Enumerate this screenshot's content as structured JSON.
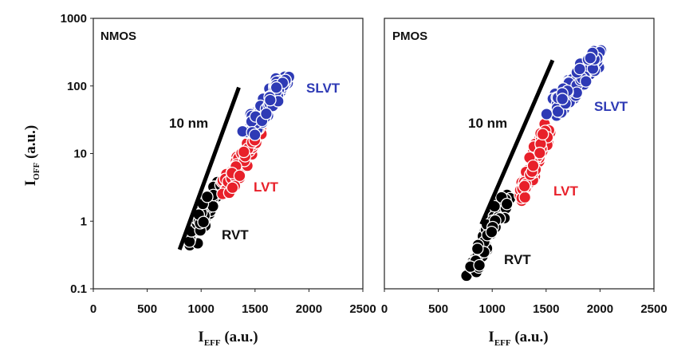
{
  "chart_data": [
    {
      "type": "scatter",
      "title": "NMOS",
      "xlabel": "I_EFF (a.u.)",
      "ylabel": "I_OFF (a.u.)",
      "xlim": [
        0,
        2500
      ],
      "ylim": [
        0.1,
        1000
      ],
      "y_scale": "log",
      "x_ticks": [
        "0",
        "500",
        "1000",
        "1500",
        "2000",
        "2500"
      ],
      "y_ticks": [
        "0.1",
        "1",
        "10",
        "100",
        "1000"
      ],
      "reference_line": {
        "label": "10 nm",
        "x": [
          800,
          1350
        ],
        "y": [
          0.38,
          95
        ]
      },
      "series": [
        {
          "name": "RVT",
          "color": "#000000",
          "x_range": [
            870,
            1200
          ],
          "y_range": [
            0.38,
            4.5
          ]
        },
        {
          "name": "LVT",
          "color": "#e8202a",
          "x_range": [
            1180,
            1600
          ],
          "y_range": [
            2.2,
            35
          ]
        },
        {
          "name": "SLVT",
          "color": "#2e3ab5",
          "x_range": [
            1380,
            1830
          ],
          "y_range": [
            17,
            150
          ]
        }
      ]
    },
    {
      "type": "scatter",
      "title": "PMOS",
      "xlabel": "I_EFF (a.u.)",
      "ylabel": "",
      "xlim": [
        0,
        2500
      ],
      "ylim": [
        0.1,
        1000
      ],
      "y_scale": "log",
      "x_ticks": [
        "0",
        "500",
        "1000",
        "1500",
        "2000",
        "2500"
      ],
      "y_ticks": [],
      "reference_line": {
        "label": "10 nm",
        "x": [
          900,
          1560
        ],
        "y": [
          0.9,
          240
        ]
      },
      "series": [
        {
          "name": "RVT",
          "color": "#000000",
          "x_range": [
            760,
            1180
          ],
          "y_range": [
            0.15,
            3
          ]
        },
        {
          "name": "LVT",
          "color": "#e8202a",
          "x_range": [
            1230,
            1560
          ],
          "y_range": [
            1.9,
            32
          ]
        },
        {
          "name": "SLVT",
          "color": "#2e3ab5",
          "x_range": [
            1500,
            2060
          ],
          "y_range": [
            35,
            360
          ]
        }
      ]
    }
  ],
  "labels": {
    "left_axis_main": "I",
    "left_axis_sub": "OFF",
    "left_axis_rest": " (a.u.)",
    "bottom_axis_main": "I",
    "bottom_axis_sub": "EFF",
    "bottom_axis_rest": " (a.u.)"
  }
}
